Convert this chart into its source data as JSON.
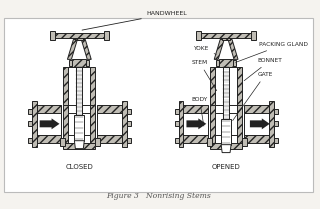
{
  "bg_color": "#f5f3ef",
  "border_color": "#aaaaaa",
  "title": "Figure 3   Nonrising Stems",
  "closed_label": "CLOSED",
  "opened_label": "OPENED",
  "handwheel_label": "HANDWHEEL",
  "yoke_label": "YOKE",
  "stem_label": "STEM",
  "body_label": "BODY",
  "packing_gland_label": "PACKING GLAND",
  "bonnet_label": "BONNET",
  "gate_label": "GATE",
  "lc": "#222222",
  "wf": "#ffffff",
  "hf": "#c0bdb5",
  "caption_color": "#555555"
}
